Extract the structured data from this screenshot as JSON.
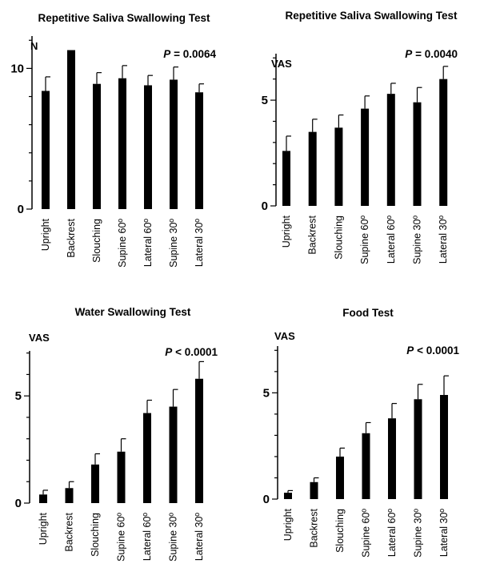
{
  "chart_data": [
    {
      "type": "bar",
      "title": "Repetitive Saliva Swallowing Test",
      "ylabel": "N",
      "p_prefix": "P",
      "p_text": " = 0.0064",
      "ylim": [
        0,
        12.3
      ],
      "yticks": [
        0,
        10
      ],
      "categories": [
        "Upright",
        "Backrest",
        "Slouching",
        "Supine 60º",
        "Lateral 60º",
        "Supine 30º",
        "Lateral 30º"
      ],
      "values": [
        8.4,
        11.3,
        8.9,
        9.3,
        8.8,
        9.2,
        8.3
      ],
      "errors": [
        1.0,
        0.0,
        0.8,
        0.9,
        0.7,
        0.9,
        0.6
      ]
    },
    {
      "type": "bar",
      "title": "Repetitive Saliva Swallowing Test",
      "ylabel": "VAS",
      "p_prefix": "P",
      "p_text": " = 0.0040",
      "ylim": [
        0,
        7.2
      ],
      "yticks": [
        0,
        5
      ],
      "categories": [
        "Upright",
        "Backrest",
        "Slouching",
        "Supine 60º",
        "Lateral 60º",
        "Supine 30º",
        "Lateral 30º"
      ],
      "values": [
        2.6,
        3.5,
        3.7,
        4.6,
        5.3,
        4.9,
        6.0
      ],
      "errors": [
        0.7,
        0.6,
        0.6,
        0.6,
        0.5,
        0.7,
        0.6
      ]
    },
    {
      "type": "bar",
      "title": "Water Swallowing Test",
      "ylabel": "VAS",
      "p_prefix": "P",
      "p_text": " < 0.0001",
      "ylim": [
        0,
        7.1
      ],
      "yticks": [
        0,
        5
      ],
      "categories": [
        "Upright",
        "Backrest",
        "Slouching",
        "Supine 60º",
        "Lateral 60º",
        "Supine 30º",
        "Lateral 30º"
      ],
      "values": [
        0.4,
        0.7,
        1.8,
        2.4,
        4.2,
        4.5,
        5.8
      ],
      "errors": [
        0.2,
        0.3,
        0.5,
        0.6,
        0.6,
        0.8,
        0.8
      ]
    },
    {
      "type": "bar",
      "title": "Food Test",
      "ylabel": "VAS",
      "p_prefix": "P",
      "p_text": " < 0.0001",
      "ylim": [
        0,
        7.2
      ],
      "yticks": [
        0,
        5
      ],
      "categories": [
        "Upright",
        "Backrest",
        "Slouching",
        "Supine 60º",
        "Lateral 60º",
        "Supine 30º",
        "Lateral 30º"
      ],
      "values": [
        0.3,
        0.8,
        2.0,
        3.1,
        3.8,
        4.7,
        4.9
      ],
      "errors": [
        0.1,
        0.2,
        0.4,
        0.5,
        0.7,
        0.7,
        0.9
      ]
    }
  ]
}
